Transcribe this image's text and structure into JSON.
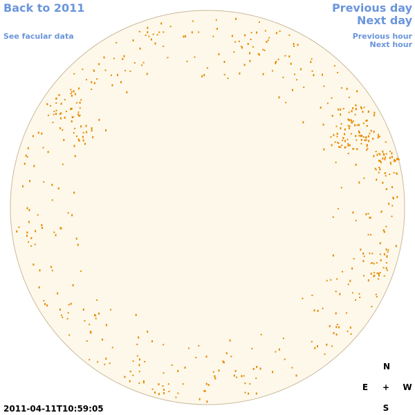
{
  "navigation": {
    "back": "Back to 2011",
    "facular_data": "See facular data",
    "previous_day": "Previous day",
    "next_day": "Next day",
    "previous_hour": "Previous hour",
    "next_hour": "Next hour"
  },
  "timestamp": "2011-04-11T10:59:05",
  "compass": {
    "north": "N",
    "east": "E",
    "center": "+",
    "west": "W",
    "south": "S"
  }
}
